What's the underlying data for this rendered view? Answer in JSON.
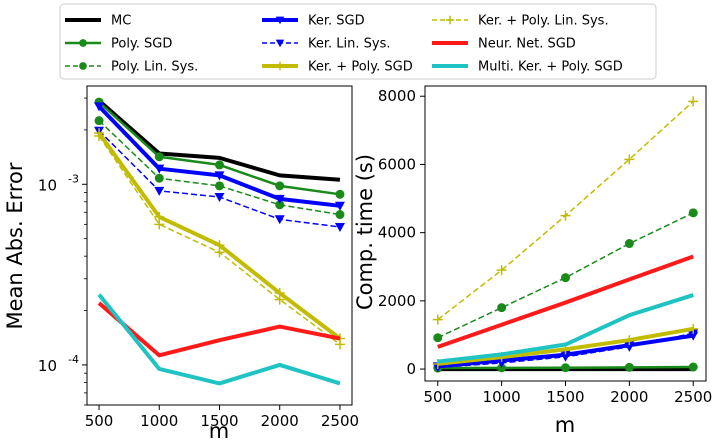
{
  "chart_data": [
    {
      "type": "line",
      "xlabel": "m",
      "ylabel": "Mean Abs. Error",
      "yscale": "log",
      "ylim": [
        6e-05,
        0.0035
      ],
      "xlim": [
        400,
        2600
      ],
      "xticks": [
        "500",
        "1000",
        "1500",
        "2000",
        "2500"
      ],
      "yticks": [
        {
          "value": 0.001,
          "label": "10",
          "exp": "-3"
        },
        {
          "value": 0.0001,
          "label": "10",
          "exp": "-4"
        }
      ],
      "x": [
        500,
        1000,
        1500,
        2000,
        2500
      ],
      "series": [
        {
          "name": "MC",
          "values": [
            0.0029,
            0.00148,
            0.0014,
            0.00112,
            0.00106
          ]
        },
        {
          "name": "Poly. SGD",
          "values": [
            0.00285,
            0.00142,
            0.00128,
            0.00098,
            0.00088
          ]
        },
        {
          "name": "Poly. Lin. Sys.",
          "values": [
            0.00225,
            0.00108,
            0.00098,
            0.00077,
            0.00068
          ]
        },
        {
          "name": "Ker. SGD",
          "values": [
            0.0027,
            0.00122,
            0.00112,
            0.00083,
            0.00076
          ]
        },
        {
          "name": "Ker. Lin. Sys.",
          "values": [
            0.00198,
            0.00092,
            0.00085,
            0.00064,
            0.00058
          ]
        },
        {
          "name": "Ker. + Poly. SGD",
          "values": [
            0.00192,
            0.00066,
            0.00046,
            0.00025,
            0.00014
          ]
        },
        {
          "name": "Ker. + Poly. Lin. Sys.",
          "values": [
            0.00185,
            0.0006,
            0.00042,
            0.00023,
            0.00013
          ]
        },
        {
          "name": "Neur. Net. SGD",
          "values": [
            0.00022,
            0.000113,
            0.000137,
            0.000163,
            0.00014
          ]
        },
        {
          "name": "Multi. Ker. + Poly. SGD",
          "values": [
            0.000245,
            9.5e-05,
            7.9e-05,
            0.0001,
            7.9e-05
          ]
        }
      ]
    },
    {
      "type": "line",
      "xlabel": "m",
      "ylabel": "Comp. time (s)",
      "yscale": "linear",
      "ylim": [
        -350,
        8300
      ],
      "xlim": [
        400,
        2600
      ],
      "xticks": [
        "500",
        "1000",
        "1500",
        "2000",
        "2500"
      ],
      "yticks": [
        "0",
        "2000",
        "4000",
        "6000",
        "8000"
      ],
      "x": [
        500,
        1000,
        1500,
        2000,
        2500
      ],
      "series": [
        {
          "name": "MC",
          "values": [
            0,
            0,
            0,
            0,
            0
          ]
        },
        {
          "name": "Poly. SGD",
          "values": [
            30,
            35,
            40,
            50,
            60
          ]
        },
        {
          "name": "Poly. Lin. Sys.",
          "values": [
            920,
            1800,
            2680,
            3680,
            4580
          ]
        },
        {
          "name": "Ker. SGD",
          "values": [
            80,
            250,
            420,
            700,
            980
          ]
        },
        {
          "name": "Ker. Lin. Sys.",
          "values": [
            50,
            180,
            360,
            650,
            1050
          ]
        },
        {
          "name": "Ker. + Poly. SGD",
          "values": [
            150,
            350,
            580,
            850,
            1180
          ]
        },
        {
          "name": "Ker. + Poly. Lin. Sys.",
          "values": [
            1450,
            2900,
            4500,
            6150,
            7850
          ]
        },
        {
          "name": "Neur. Net. SGD",
          "values": [
            650,
            1300,
            1950,
            2630,
            3300
          ]
        },
        {
          "name": "Multi. Ker. + Poly. SGD",
          "values": [
            220,
            430,
            720,
            1580,
            2170
          ]
        }
      ]
    }
  ],
  "legend": {
    "placement": "top",
    "items": [
      {
        "label": "MC",
        "color": "#000000",
        "dash": "solid",
        "marker": "none",
        "width": 4
      },
      {
        "label": "Poly. SGD",
        "color": "#1a8a1a",
        "dash": "solid",
        "marker": "circle",
        "width": 2.5
      },
      {
        "label": "Poly. Lin. Sys.",
        "color": "#1a8a1a",
        "dash": "dashed",
        "marker": "circle",
        "width": 1.5
      },
      {
        "label": "Ker. SGD",
        "color": "#0000ff",
        "dash": "solid",
        "marker": "triangle",
        "width": 4
      },
      {
        "label": "Ker. Lin. Sys.",
        "color": "#0000ff",
        "dash": "dashed",
        "marker": "triangle",
        "width": 1.5
      },
      {
        "label": "Ker. + Poly. SGD",
        "color": "#c2bc00",
        "dash": "solid",
        "marker": "plus",
        "width": 4
      },
      {
        "label": "Ker. + Poly. Lin. Sys.",
        "color": "#c2bc00",
        "dash": "dashed",
        "marker": "plus",
        "width": 1.5
      },
      {
        "label": "Neur. Net. SGD",
        "color": "#ff1a1a",
        "dash": "solid",
        "marker": "none",
        "width": 4
      },
      {
        "label": "Multi. Ker. + Poly. SGD",
        "color": "#1fc3c3",
        "dash": "solid",
        "marker": "none",
        "width": 4
      }
    ]
  }
}
